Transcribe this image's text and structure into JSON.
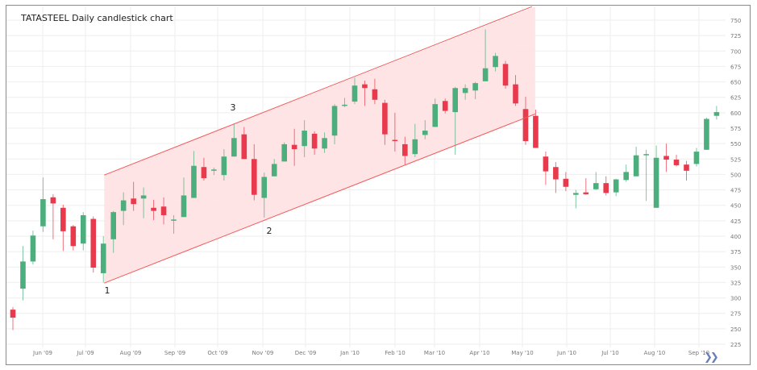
{
  "chart_data": {
    "type": "candlestick",
    "title": "TATASTEEL Daily candlestick chart",
    "xlabel": "",
    "ylabel": "",
    "ylim": [
      225,
      750
    ],
    "y_ticks": [
      225,
      250,
      275,
      300,
      325,
      350,
      375,
      400,
      425,
      450,
      475,
      500,
      525,
      550,
      575,
      600,
      625,
      650,
      675,
      700,
      725,
      750
    ],
    "x_tick_labels": [
      "Jun '09",
      "Jul '09",
      "Aug '09",
      "Sep '09",
      "Oct '09",
      "Nov '09",
      "Dec '09",
      "Jan '10",
      "Feb '10",
      "Mar '10",
      "Apr '10",
      "May '10",
      "Jun '10",
      "Jul '10",
      "Aug '10",
      "Sep '10"
    ],
    "grid": true,
    "colors": {
      "up": "#4cae7c",
      "down": "#e8394d",
      "channel_fill": "#ffe1e3",
      "channel_line": "#f25a5a"
    },
    "candles": [
      [
        281,
        285,
        248,
        268
      ],
      [
        315,
        384,
        296,
        359
      ],
      [
        359,
        409,
        354,
        401
      ],
      [
        416,
        495,
        407,
        460
      ],
      [
        463,
        468,
        395,
        453
      ],
      [
        446,
        451,
        376,
        408
      ],
      [
        416,
        418,
        377,
        384
      ],
      [
        388,
        439,
        377,
        434
      ],
      [
        428,
        432,
        341,
        349
      ],
      [
        340,
        400,
        325,
        388
      ],
      [
        395,
        441,
        373,
        439
      ],
      [
        441,
        471,
        418,
        458
      ],
      [
        461,
        488,
        441,
        452
      ],
      [
        461,
        479,
        429,
        466
      ],
      [
        446,
        459,
        426,
        441
      ],
      [
        448,
        463,
        419,
        434
      ],
      [
        426,
        434,
        404,
        427
      ],
      [
        431,
        495,
        431,
        466
      ],
      [
        462,
        538,
        462,
        514
      ],
      [
        512,
        527,
        490,
        494
      ],
      [
        506,
        511,
        499,
        508
      ],
      [
        499,
        541,
        490,
        529
      ],
      [
        529,
        582,
        529,
        559
      ],
      [
        565,
        577,
        525,
        525
      ],
      [
        525,
        549,
        458,
        467
      ],
      [
        462,
        503,
        430,
        496
      ],
      [
        497,
        525,
        497,
        517
      ],
      [
        521,
        552,
        521,
        549
      ],
      [
        548,
        574,
        514,
        541
      ],
      [
        546,
        588,
        528,
        571
      ],
      [
        566,
        570,
        532,
        542
      ],
      [
        542,
        568,
        535,
        559
      ],
      [
        563,
        614,
        549,
        611
      ],
      [
        612,
        624,
        609,
        613
      ],
      [
        618,
        657,
        614,
        644
      ],
      [
        646,
        652,
        611,
        640
      ],
      [
        638,
        655,
        614,
        621
      ],
      [
        616,
        621,
        548,
        565
      ],
      [
        556,
        600,
        537,
        555
      ],
      [
        549,
        561,
        516,
        530
      ],
      [
        533,
        582,
        528,
        557
      ],
      [
        564,
        588,
        557,
        571
      ],
      [
        577,
        623,
        577,
        614
      ],
      [
        619,
        623,
        599,
        603
      ],
      [
        601,
        642,
        532,
        640
      ],
      [
        632,
        646,
        621,
        640
      ],
      [
        636,
        650,
        622,
        648
      ],
      [
        651,
        735,
        651,
        672
      ],
      [
        674,
        697,
        667,
        692
      ],
      [
        679,
        684,
        639,
        644
      ],
      [
        646,
        661,
        611,
        615
      ],
      [
        606,
        626,
        548,
        554
      ],
      [
        595,
        605,
        543,
        543
      ],
      [
        529,
        537,
        483,
        505
      ],
      [
        512,
        520,
        470,
        492
      ],
      [
        493,
        504,
        473,
        480
      ],
      [
        467,
        475,
        445,
        470
      ],
      [
        471,
        494,
        467,
        468
      ],
      [
        476,
        504,
        475,
        486
      ],
      [
        486,
        497,
        466,
        470
      ],
      [
        471,
        493,
        465,
        492
      ],
      [
        491,
        516,
        488,
        504
      ],
      [
        497,
        545,
        497,
        531
      ],
      [
        532,
        540,
        457,
        533
      ],
      [
        446,
        547,
        446,
        527
      ],
      [
        530,
        550,
        504,
        524
      ],
      [
        524,
        532,
        513,
        515
      ],
      [
        516,
        522,
        490,
        506
      ],
      [
        517,
        543,
        513,
        537
      ],
      [
        540,
        592,
        540,
        590
      ],
      [
        595,
        611,
        589,
        601
      ]
    ],
    "channel": {
      "start_candle": 9,
      "end_candle": 52,
      "upper": [
        499,
        772
      ],
      "lower": [
        324,
        598
      ]
    },
    "annotations": [
      "1",
      "2",
      "3"
    ]
  }
}
